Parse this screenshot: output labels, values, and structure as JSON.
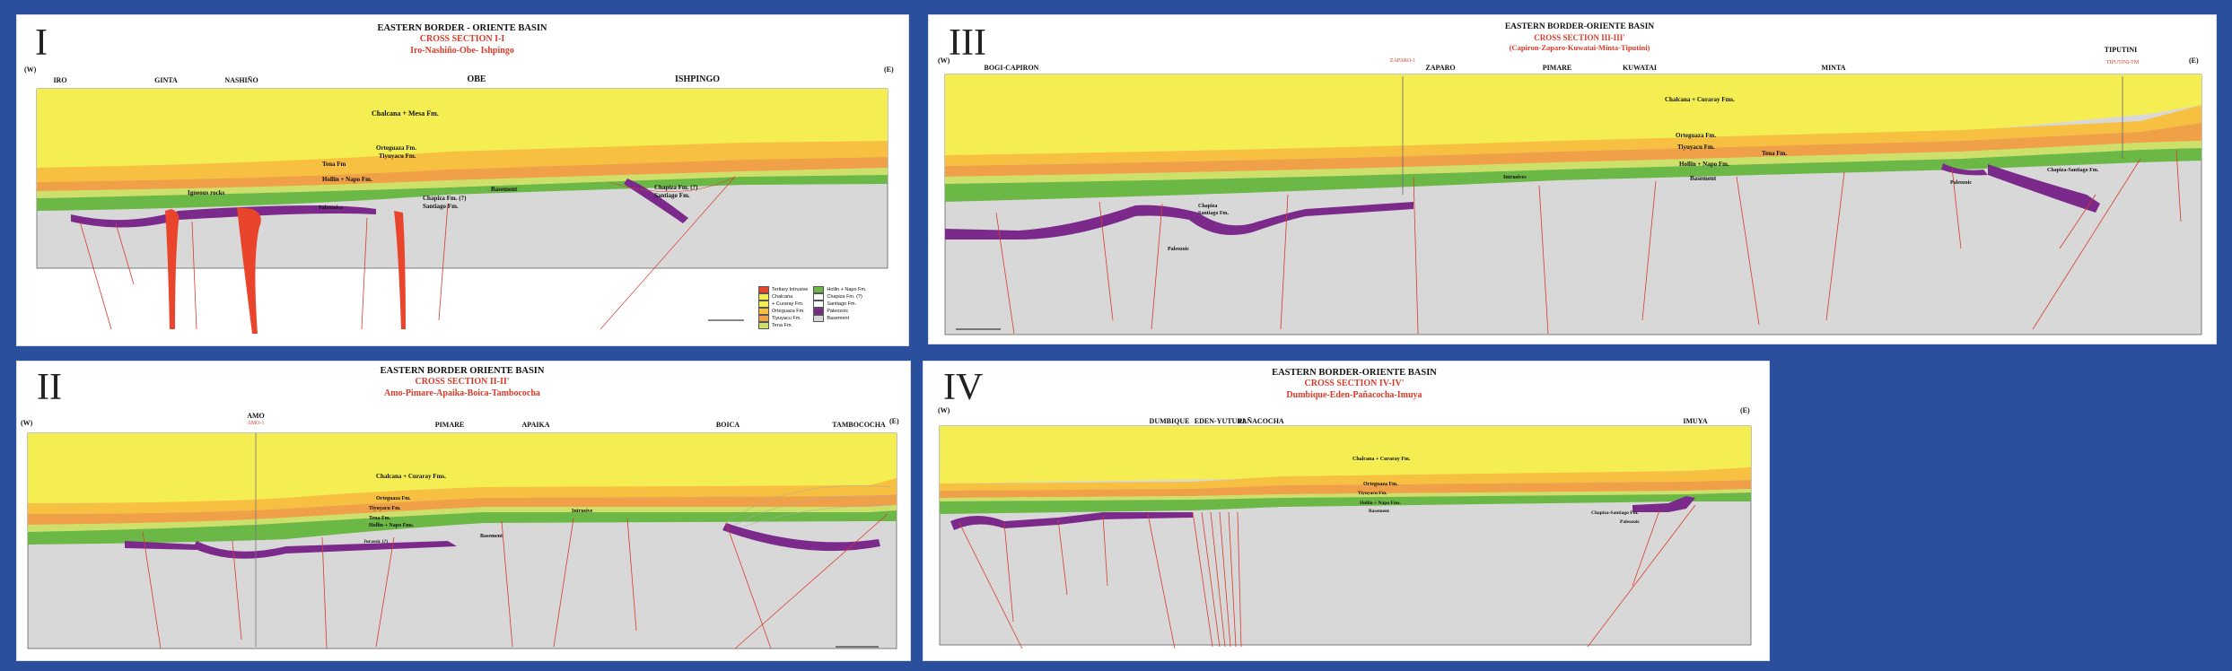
{
  "panels": [
    {
      "numeral": "I",
      "title": "EASTERN BORDER - ORIENTE BASIN",
      "subtitle": "CROSS SECTION I-I",
      "route": "Iro-Nashiño-Obe- Ishpingo",
      "west": "(W)",
      "east": "(E)",
      "locations": [
        "IRO",
        "GINTA",
        "NASHIÑO",
        "OBE",
        "ISHPINGO"
      ],
      "labels": {
        "chalcana": "Chalcana + Mesa Fm.",
        "orteguaza": "Orteguaza Fm.",
        "tiyuyacu": "Tiyuyacu Fm.",
        "tena": "Tena Fm",
        "hollin": "Hollin + Napo Fm.",
        "igneous": "Igneous rocks",
        "basement": "Basement",
        "chapiza1a": "Chapiza Fm. (?)",
        "chapiza1b": "Santiago Fm.",
        "chapiza2a": "Chapiza Fm. (?)",
        "chapiza2b": "Santiago Fm.",
        "paleozoic": "Paleozoico"
      },
      "legend": [
        {
          "label": "Tertiary Intrusive",
          "color": "#e8452c"
        },
        {
          "label": "Chalcana",
          "color": "#f5ee52"
        },
        {
          "label": "+ Curaray Fm.",
          "color": "#f5ee52"
        },
        {
          "label": "Orteguaza Fm.",
          "color": "#f7c041"
        },
        {
          "label": "Tiyuyacu Fm.",
          "color": "#f0a046"
        },
        {
          "label": "Tena Fm.",
          "color": "#cde06a"
        },
        {
          "label": "Hollin + Napo Fm.",
          "color": "#6cb847"
        },
        {
          "label": "Chapiza Fm. (?)",
          "color": "#ffffff"
        },
        {
          "label": "Santiago Fm.",
          "color": "#ffffff"
        },
        {
          "label": "Paleozoic",
          "color": "#7b2a8c"
        },
        {
          "label": "Basement",
          "color": "#d8d8d8"
        }
      ]
    },
    {
      "numeral": "III",
      "title": "EASTERN BORDER-ORIENTE BASIN",
      "subtitle": "CROSS SECTION III-III'",
      "route": "(Capiron-Zaparo-Kuwatai-Minta-Tiputini)",
      "west": "(W)",
      "east": "(E)",
      "locations": [
        "BOGI-CAPIRON",
        "ZAPARO",
        "PIMARE",
        "KUWATAI",
        "MINTA",
        "TIPUTINI"
      ],
      "wells": [
        "ZAPARO-1",
        "TIPUTINI-TM"
      ],
      "labels": {
        "chalcana": "Chalcana + Curaray Fms.",
        "orteguaza": "Orteguaza Fm.",
        "tiyuyacu": "Tiyuyacu Fm.",
        "tena": "Tena Fm.",
        "hollin": "Hollin + Napo Fm.",
        "intrusives": "Intrusives",
        "basement": "Basement",
        "chapiza_a": "Chapiza",
        "chapiza_b": "Santiago Fm.",
        "paleozoic": "Paleozoic",
        "chapiza_east": "Chapiza-Santiago Fm.",
        "paleozoic_east": "Paleozoic"
      }
    },
    {
      "numeral": "II",
      "title": "EASTERN BORDER ORIENTE BASIN",
      "subtitle": "CROSS SECTION II-II'",
      "route": "Amo-Pimare-Apaika-Boica-Tambococha",
      "west": "(W)",
      "east": "(E)",
      "locations": [
        "AMO",
        "PIMARE",
        "APAIKA",
        "BOICA",
        "TAMBOCOCHA"
      ],
      "wells": [
        "AMO-1"
      ],
      "labels": {
        "chalcana": "Chalcana + Curaray Fms.",
        "orteguaza": "Orteguaza Fm.",
        "tiyuyacu": "Tiyuyacu Fm.",
        "tena": "Tena Fm.",
        "hollin": "Hollin + Napo Fms.",
        "intrusive": "Intrusive",
        "basement": "Basement",
        "jurassic": "Jurassic (?)"
      }
    },
    {
      "numeral": "IV",
      "title": "EASTERN BORDER-ORIENTE BASIN",
      "subtitle": "CROSS SECTION IV-IV'",
      "route": "Dumbique-Eden-Pañacocha-Imuya",
      "west": "(W)",
      "east": "(E)",
      "locations": [
        "DUMBIQUE",
        "EDEN-YUTURI",
        "PAÑACOCHA",
        "IMUYA"
      ],
      "labels": {
        "chalcana": "Chalcana + Curaray Fm.",
        "orteguaza": "Orteguaza Fm.",
        "tiyuyacu": "Tiyuyacu Fm.",
        "hollin": "Hollin + Napo Fms.",
        "basement": "Basement",
        "chapiza": "Chapiza-Santiago Fm.",
        "paleozoic": "Paleozoic"
      }
    }
  ],
  "colors": {
    "background": "#2a4f9c",
    "chalcana": "#f5ee52",
    "orteguaza": "#f7c041",
    "tiyuyacu": "#f0a046",
    "tena": "#cde06a",
    "hollin": "#6cb847",
    "paleozoic": "#7b2a8c",
    "basement": "#d8d8d8",
    "intrusive": "#e8452c",
    "fault": "#d93b2b",
    "title_red": "#d93b2b"
  }
}
